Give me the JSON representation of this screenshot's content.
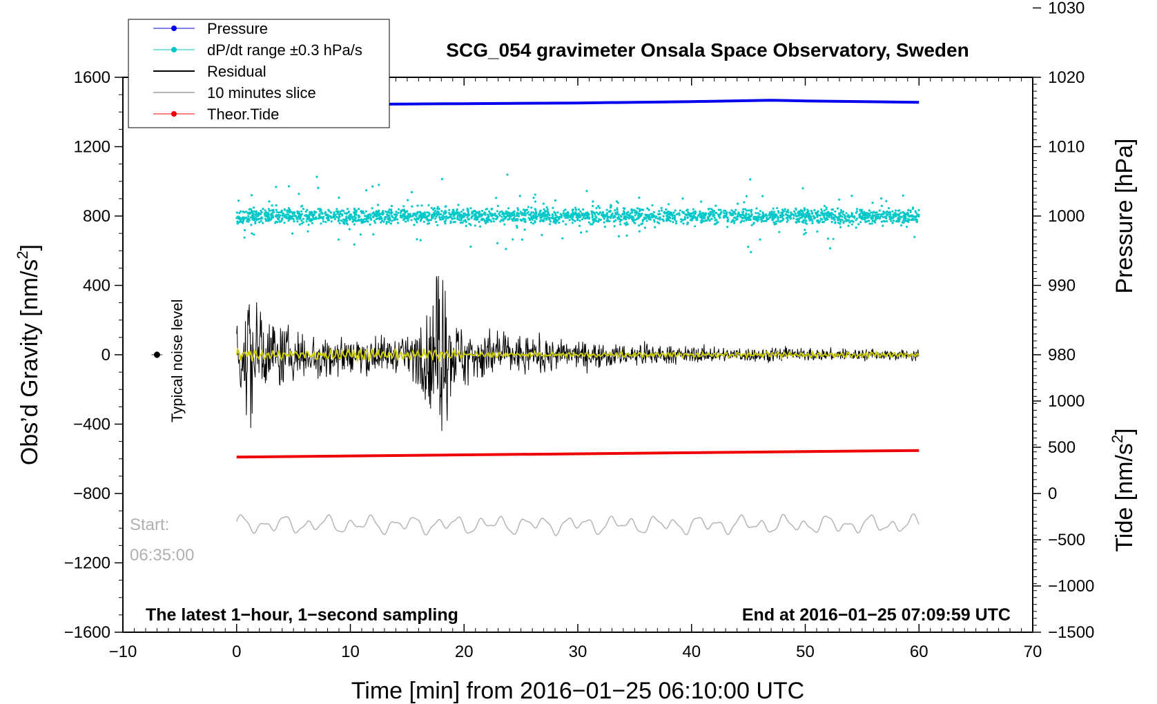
{
  "chart_data": {
    "type": "line",
    "title": "SCG_054 gravimeter Onsala Space Observatory, Sweden",
    "xlabel": "Time [min] from 2016−01−25 06:10:00 UTC",
    "ylabel": "Obs’d Gravity [nm/s",
    "ylabel_sup": "2",
    "ylabel_end": "]",
    "y2label": "Pressure [hPa]",
    "y3label": "Tide [nm/s",
    "y3label_sup": "2",
    "y3label_end": "]",
    "xlim": [
      -10,
      70
    ],
    "ylim": [
      -1600,
      1600
    ],
    "x_ticks": [
      -10,
      0,
      10,
      20,
      30,
      40,
      50,
      60,
      70
    ],
    "x_tick_labels": [
      "−10",
      "0",
      "10",
      "20",
      "30",
      "40",
      "50",
      "60",
      "70"
    ],
    "y_ticks": [
      -1600,
      -1200,
      -800,
      -400,
      0,
      400,
      800,
      1200,
      1600
    ],
    "y_tick_labels": [
      "−1600",
      "−1200",
      "−800",
      "−400",
      "0",
      "400",
      "800",
      "1200",
      "1600"
    ],
    "pressure_axis": {
      "ticks": [
        980,
        990,
        1000,
        1010,
        1020,
        1030
      ],
      "tick_labels": [
        "980",
        "990",
        "1000",
        "1010",
        "1020",
        "1030"
      ],
      "gravity_at_1000": 800,
      "gravity_per_hpa": 40
    },
    "tide_axis": {
      "ticks": [
        -1500,
        -1000,
        -500,
        0,
        500,
        1000
      ],
      "tick_labels": [
        "−1500",
        "−1000",
        "−500",
        "0",
        "500",
        "1000"
      ],
      "gravity_at_0": -800,
      "gravity_per_unit": 0.5333
    },
    "legend": [
      {
        "label": "Pressure",
        "color": "#0000ee",
        "marker": true
      },
      {
        "label": "dP/dt range ±0.3 hPa/s",
        "color": "#00c8c8",
        "marker": true
      },
      {
        "label": "Residual",
        "color": "#000000",
        "marker": false
      },
      {
        "label": "10 minutes slice",
        "color": "#b4b4b4",
        "marker": false
      },
      {
        "label": "Theor.Tide",
        "color": "#ee0000",
        "marker": true
      }
    ],
    "series": [
      {
        "name": "Pressure",
        "color": "#0000ee",
        "x": [
          0,
          10,
          20,
          30,
          40,
          47,
          50,
          60
        ],
        "y_hpa": [
          1016.2,
          1016.1,
          1016.2,
          1016.3,
          1016.5,
          1016.7,
          1016.6,
          1016.4
        ]
      },
      {
        "name": "dP/dt range ±0.3 hPa/s",
        "color": "#00c8c8",
        "center_y": 800,
        "spread_y": 60
      },
      {
        "name": "Residual",
        "color": "#000000",
        "envelope_x": [
          0,
          1,
          2,
          3,
          6,
          10,
          15,
          17,
          18,
          19,
          22,
          25,
          30,
          40,
          50,
          60
        ],
        "envelope_y": [
          150,
          380,
          260,
          180,
          120,
          110,
          90,
          250,
          560,
          200,
          140,
          110,
          70,
          45,
          35,
          30
        ]
      },
      {
        "name": "Residual (filtered)",
        "color": "#cccc00",
        "amplitude": 18
      },
      {
        "name": "10 minutes slice",
        "color": "#b4b4b4",
        "center_y": -980,
        "amplitude": 60
      },
      {
        "name": "Theor.Tide",
        "color": "#ee0000",
        "x": [
          0,
          60
        ],
        "y_gravity": [
          -590,
          -552
        ]
      }
    ],
    "noise_marker": {
      "x": -7,
      "y": 0,
      "error": 20,
      "label": "Typical noise level"
    },
    "annotations": {
      "start_label": "Start:",
      "start_time": "06:35:00",
      "bottom_left": "The latest 1−hour, 1−second sampling",
      "bottom_right": "End at 2016−01−25 07:09:59 UTC"
    }
  }
}
